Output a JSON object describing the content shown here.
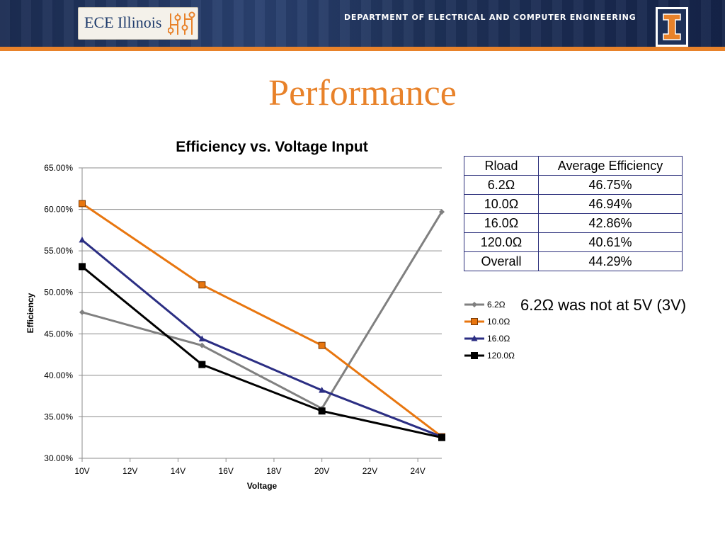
{
  "header": {
    "logo_text": "ECE Illinois",
    "department": "DEPARTMENT OF ELECTRICAL AND COMPUTER ENGINEERING"
  },
  "slide": {
    "title": "Performance",
    "note": "6.2Ω was not at 5V (3V)"
  },
  "colors": {
    "banner": "#1e3158",
    "accent": "#e8822a",
    "table_border": "#2a2e7a"
  },
  "table": {
    "headers": [
      "Rload",
      "Average Efficiency"
    ],
    "rows": [
      [
        "6.2Ω",
        "46.75%"
      ],
      [
        "10.0Ω",
        "46.94%"
      ],
      [
        "16.0Ω",
        "42.86%"
      ],
      [
        "120.0Ω",
        "40.61%"
      ],
      [
        "Overall",
        "44.29%"
      ]
    ]
  },
  "chart_data": {
    "type": "line",
    "title": "Efficiency vs. Voltage Input",
    "xlabel": "Voltage",
    "ylabel": "Efficiency",
    "xlim": [
      10,
      25
    ],
    "ylim": [
      30,
      65
    ],
    "x_ticks": [
      "10V",
      "12V",
      "14V",
      "16V",
      "18V",
      "20V",
      "22V",
      "24V"
    ],
    "x_tick_values": [
      10,
      12,
      14,
      16,
      18,
      20,
      22,
      24
    ],
    "y_ticks": [
      "30.00%",
      "35.00%",
      "40.00%",
      "45.00%",
      "50.00%",
      "55.00%",
      "60.00%",
      "65.00%"
    ],
    "y_tick_values": [
      30,
      35,
      40,
      45,
      50,
      55,
      60,
      65
    ],
    "grid": "horizontal",
    "legend": "right",
    "series": [
      {
        "name": "6.2Ω",
        "color": "#808080",
        "marker": "diamond",
        "points": [
          [
            10,
            47.6
          ],
          [
            15,
            43.6
          ],
          [
            20,
            36.0
          ],
          [
            25,
            59.7
          ]
        ]
      },
      {
        "name": "10.0Ω",
        "color": "#e8760f",
        "marker": "square-outline",
        "points": [
          [
            10,
            60.7
          ],
          [
            15,
            50.9
          ],
          [
            20,
            43.6
          ],
          [
            25,
            32.6
          ]
        ]
      },
      {
        "name": "16.0Ω",
        "color": "#2b2e83",
        "marker": "triangle",
        "points": [
          [
            10,
            56.3
          ],
          [
            15,
            44.4
          ],
          [
            20,
            38.2
          ],
          [
            25,
            32.6
          ]
        ]
      },
      {
        "name": "120.0Ω",
        "color": "#000000",
        "marker": "square",
        "points": [
          [
            10,
            53.1
          ],
          [
            15,
            41.3
          ],
          [
            20,
            35.7
          ],
          [
            25,
            32.5
          ]
        ]
      }
    ]
  }
}
